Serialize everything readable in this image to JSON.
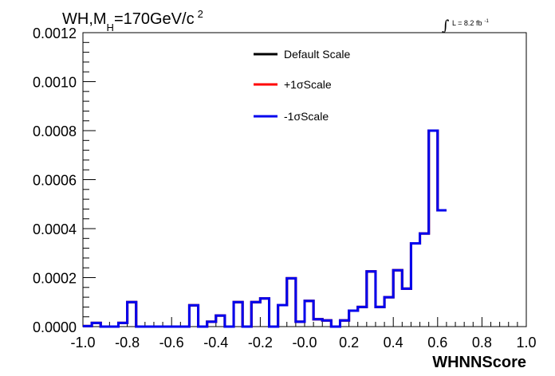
{
  "chart_data": {
    "type": "histogram",
    "title": {
      "prefix": "WH,M",
      "subscript": "H",
      "middle": "=170GeV/c",
      "superscript": "2"
    },
    "lumi": {
      "integral": "∫",
      "text": "L = 8.2 fb",
      "superscript": "-1"
    },
    "xlabel": "WHNNScore",
    "ylabel": "",
    "xlim": [
      -1.0,
      1.0
    ],
    "ylim": [
      0.0,
      0.0012
    ],
    "x_ticks": [
      "-1.0",
      "-0.8",
      "-0.6",
      "-0.4",
      "-0.2",
      "-0.0",
      "0.2",
      "0.4",
      "0.6",
      "0.8",
      "1.0"
    ],
    "y_ticks": [
      "0.0000",
      "0.0002",
      "0.0004",
      "0.0006",
      "0.0008",
      "0.0010",
      "0.0012"
    ],
    "bin_edges_start": -1.0,
    "bin_width": 0.04,
    "legend_position": "top-center",
    "series": [
      {
        "name": "Default Scale",
        "color": "#000000",
        "values": [
          2e-06,
          1.5e-05,
          0.0,
          0.0,
          1.5e-05,
          0.0001,
          0.0,
          0.0,
          0.0,
          0.0,
          0.0,
          0.0,
          8.7e-05,
          0.0,
          2e-05,
          4.5e-05,
          0.0,
          0.0001,
          0.0,
          0.0001,
          0.000115,
          0.0,
          8.8e-05,
          0.000197,
          2e-05,
          0.000105,
          3e-05,
          2.5e-05,
          0.0,
          2.5e-05,
          6.5e-05,
          8e-05,
          0.000225,
          8e-05,
          0.00012,
          0.00023,
          0.000155,
          0.00034,
          0.00038,
          0.0008,
          0.000475
        ]
      },
      {
        "name": "+1σScale",
        "color": "#ff0000",
        "values": [
          2e-06,
          1.5e-05,
          0.0,
          0.0,
          1.5e-05,
          0.0001,
          0.0,
          0.0,
          0.0,
          0.0,
          0.0,
          0.0,
          8.7e-05,
          0.0,
          2e-05,
          4.5e-05,
          0.0,
          0.0001,
          0.0,
          0.0001,
          0.000115,
          0.0,
          8.8e-05,
          0.000197,
          2e-05,
          0.000105,
          3e-05,
          2.5e-05,
          0.0,
          2.5e-05,
          6.5e-05,
          8e-05,
          0.000225,
          8e-05,
          0.00012,
          0.00023,
          0.000155,
          0.00034,
          0.00038,
          0.0008,
          0.000475
        ]
      },
      {
        "name": "-1σScale",
        "color": "#0000ee",
        "values": [
          2e-06,
          1.5e-05,
          0.0,
          0.0,
          1.5e-05,
          0.0001,
          0.0,
          0.0,
          0.0,
          0.0,
          0.0,
          0.0,
          8.7e-05,
          0.0,
          2e-05,
          4.5e-05,
          0.0,
          0.0001,
          0.0,
          0.0001,
          0.000115,
          0.0,
          8.8e-05,
          0.000197,
          2e-05,
          0.000105,
          3e-05,
          2.5e-05,
          0.0,
          2.5e-05,
          6.5e-05,
          8e-05,
          0.000225,
          8e-05,
          0.00012,
          0.00023,
          0.000155,
          0.00034,
          0.00038,
          0.0008,
          0.000475
        ]
      }
    ]
  }
}
